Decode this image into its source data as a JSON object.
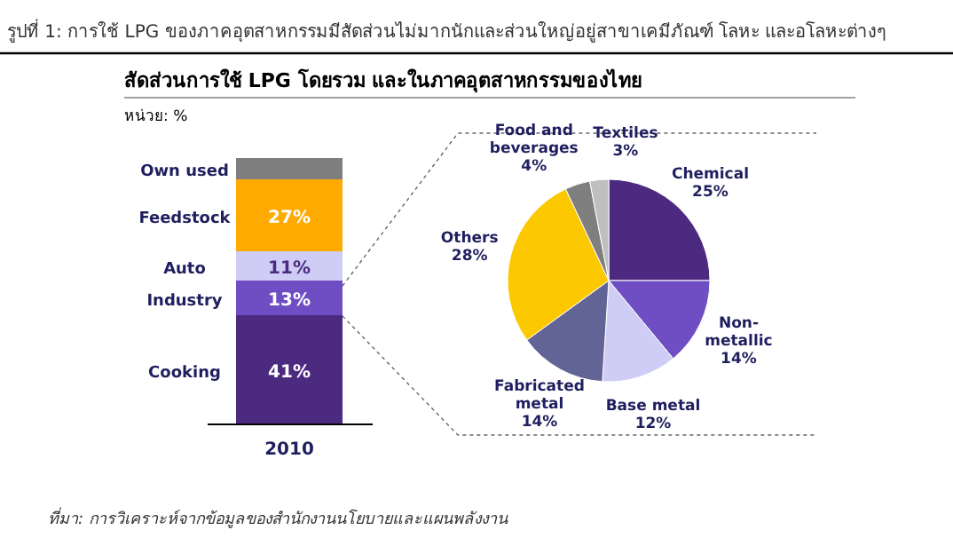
{
  "chart_data": [
    {
      "type": "bar",
      "stacked": true,
      "title": "รูปที่ 1: การใช้ LPG ของภาคอุตสาหกรรมมีสัดส่วนไม่มากนักและส่วนใหญ่อยู่สาขาเคมีภัณฑ์ โลหะ และอโลหะต่างๆ",
      "subtitle": "สัดส่วนการใช้ LPG โดยรวม และในภาคอุตสาหกรรมของไทย",
      "annotations": [
        "หน่วย: %",
        "ที่มา:  การวิเคราะห์จากข้อมูลของสำนักงานนโยบายและแผนพลังงาน"
      ],
      "categories": [
        "2010"
      ],
      "series": [
        {
          "name": "Cooking",
          "color": "#4b2a7f",
          "values": [
            41
          ],
          "value_labels": [
            "41%"
          ]
        },
        {
          "name": "Industry",
          "color": "#6f4ec4",
          "values": [
            13
          ],
          "value_labels": [
            "13%"
          ]
        },
        {
          "name": "Auto",
          "color": "#cfcdf5",
          "values": [
            11
          ],
          "value_labels": [
            "11%"
          ]
        },
        {
          "name": "Feedstock",
          "color": "#ffaa00",
          "values": [
            27
          ],
          "value_labels": [
            "27%"
          ]
        },
        {
          "name": "Own used",
          "color": "#7f7f7f",
          "values": [
            8
          ],
          "value_labels": [
            null
          ]
        }
      ]
    },
    {
      "type": "pie",
      "categories": [
        "Chemical",
        "Non-metallic",
        "Base metal",
        "Fabricated metal",
        "Others",
        "Food and beverages",
        "Textiles"
      ],
      "values": [
        25,
        14,
        12,
        14,
        28,
        4,
        3
      ],
      "colors": [
        "#4b2a7f",
        "#6f4ec4",
        "#cfcdf5",
        "#636496",
        "#fcc800",
        "#7f7f7f",
        "#bfbfbf"
      ],
      "value_labels": [
        "25%",
        "14%",
        "12%",
        "14%",
        "28%",
        "4%",
        "3%"
      ]
    }
  ]
}
